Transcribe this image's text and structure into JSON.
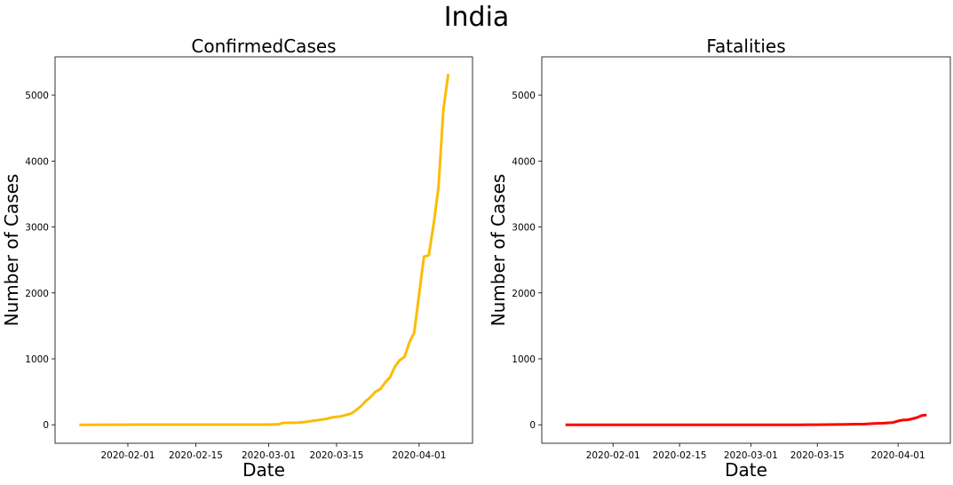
{
  "suptitle": "India",
  "chart_data": [
    {
      "type": "line",
      "title": "ConfirmedCases",
      "xlabel": "Date",
      "ylabel": "Number of Cases",
      "color": "#fbbc05",
      "xlim": [
        "2020-01-17",
        "2020-04-12"
      ],
      "ylim": [
        -280,
        5580
      ],
      "xticks": [
        "2020-02-01",
        "2020-02-15",
        "2020-03-01",
        "2020-03-15",
        "2020-04-01"
      ],
      "yticks": [
        0,
        1000,
        2000,
        3000,
        4000,
        5000
      ],
      "series": [
        {
          "x": [
            "2020-01-22",
            "2020-01-30",
            "2020-02-01",
            "2020-02-02",
            "2020-02-10",
            "2020-02-20",
            "2020-03-01",
            "2020-03-02",
            "2020-03-03",
            "2020-03-04",
            "2020-03-05",
            "2020-03-06",
            "2020-03-07",
            "2020-03-08",
            "2020-03-09",
            "2020-03-10",
            "2020-03-11",
            "2020-03-12",
            "2020-03-13",
            "2020-03-14",
            "2020-03-15",
            "2020-03-16",
            "2020-03-17",
            "2020-03-18",
            "2020-03-19",
            "2020-03-20",
            "2020-03-21",
            "2020-03-22",
            "2020-03-23",
            "2020-03-24",
            "2020-03-25",
            "2020-03-26",
            "2020-03-27",
            "2020-03-28",
            "2020-03-29",
            "2020-03-30",
            "2020-03-31",
            "2020-04-01",
            "2020-04-02",
            "2020-04-03",
            "2020-04-04",
            "2020-04-05",
            "2020-04-06"
          ],
          "y": [
            0,
            1,
            2,
            3,
            3,
            3,
            3,
            5,
            6,
            28,
            30,
            31,
            34,
            39,
            48,
            60,
            69,
            80,
            90,
            110,
            120,
            130,
            150,
            170,
            220,
            280,
            360,
            420,
            500,
            540,
            640,
            720,
            880,
            980,
            1030,
            1250,
            1400,
            1980,
            2550,
            2570,
            3050,
            3600,
            4780
          ]
        }
      ],
      "end_point": {
        "x": "2020-04-07",
        "y": 5320
      }
    },
    {
      "type": "line",
      "title": "Fatalities",
      "xlabel": "Date",
      "ylabel": "Number of Cases",
      "color": "#ff0000",
      "xlim": [
        "2020-01-17",
        "2020-04-12"
      ],
      "ylim": [
        -280,
        5580
      ],
      "xticks": [
        "2020-02-01",
        "2020-02-15",
        "2020-03-01",
        "2020-03-15",
        "2020-04-01"
      ],
      "yticks": [
        0,
        1000,
        2000,
        3000,
        4000,
        5000
      ],
      "series": [
        {
          "x": [
            "2020-01-22",
            "2020-03-11",
            "2020-03-13",
            "2020-03-15",
            "2020-03-17",
            "2020-03-19",
            "2020-03-21",
            "2020-03-23",
            "2020-03-25",
            "2020-03-27",
            "2020-03-29",
            "2020-03-31",
            "2020-04-01",
            "2020-04-02",
            "2020-04-03",
            "2020-04-04",
            "2020-04-05",
            "2020-04-06",
            "2020-04-07"
          ],
          "y": [
            0,
            0,
            1,
            2,
            3,
            4,
            5,
            9,
            11,
            19,
            25,
            35,
            58,
            72,
            75,
            90,
            110,
            140,
            150
          ]
        }
      ]
    }
  ]
}
